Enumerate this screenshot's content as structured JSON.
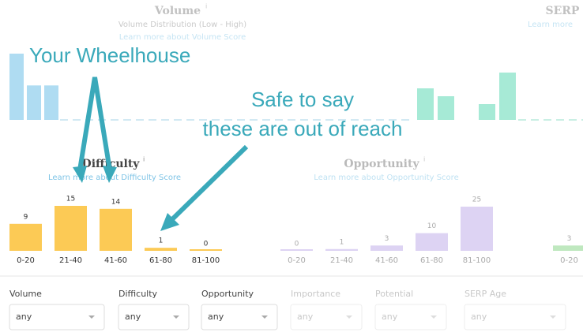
{
  "volume_panel": {
    "title": "Volume",
    "info": "i",
    "subtitle": "Volume Distribution (Low - High)",
    "link": "Learn more about Volume Score",
    "values": [
      100,
      52,
      52
    ]
  },
  "serp_panel": {
    "title": "SERP",
    "link": "Learn more",
    "values": [
      40,
      30,
      0,
      20,
      60
    ]
  },
  "annotations": {
    "wheelhouse": "Your Wheelhouse",
    "reach_line1": "Safe to say",
    "reach_line2": "these are out of reach"
  },
  "difficulty_panel": {
    "title": "Difficulty",
    "info": "i",
    "link": "Learn more about Difficulty Score",
    "categories": [
      "0-20",
      "21-40",
      "41-60",
      "61-80",
      "81-100"
    ],
    "values": [
      9,
      15,
      14,
      1,
      0
    ]
  },
  "opportunity_panel": {
    "title": "Opportunity",
    "info": "i",
    "link": "Learn more about Opportunity Score",
    "categories": [
      "0-20",
      "21-40",
      "41-60",
      "61-80",
      "81-100"
    ],
    "values": [
      0,
      1,
      3,
      10,
      25
    ]
  },
  "next_panel": {
    "categories": [
      "0-20"
    ],
    "values": [
      3
    ]
  },
  "filters": [
    {
      "label": "Volume",
      "value": "any"
    },
    {
      "label": "Difficulty",
      "value": "any"
    },
    {
      "label": "Opportunity",
      "value": "any"
    },
    {
      "label": "Importance",
      "value": "any"
    },
    {
      "label": "Potential",
      "value": "any"
    },
    {
      "label": "SERP Age",
      "value": "any"
    }
  ]
}
